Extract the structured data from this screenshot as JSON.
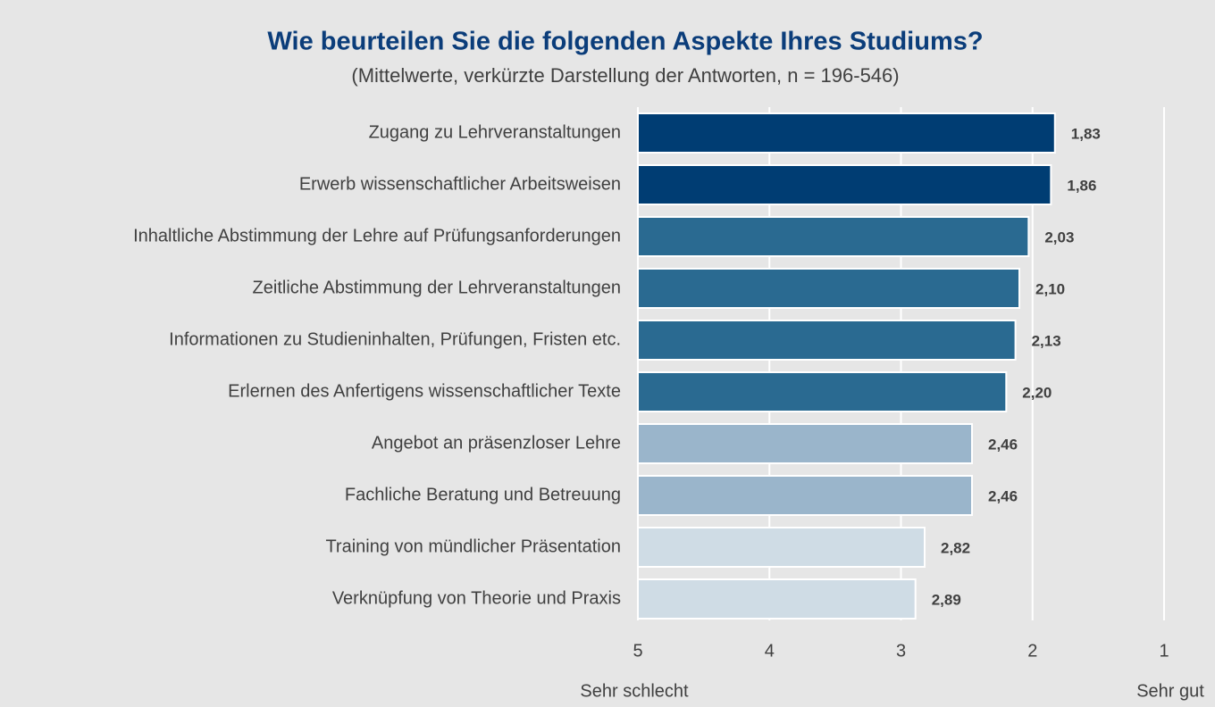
{
  "chart_data": {
    "type": "barh",
    "title": "Wie beurteilen Sie die folgenden Aspekte Ihres Studiums?",
    "subtitle": "(Mittelwerte, verkürzte Darstellung der Antworten, n = 196-546)",
    "categories": [
      "Zugang zu Lehrveranstaltungen",
      "Erwerb wissenschaftlicher Arbeitsweisen",
      "Inhaltliche Abstimmung der Lehre auf Prüfungsanforderungen",
      "Zeitliche Abstimmung der Lehrveranstaltungen",
      "Informationen zu Studieninhalten, Prüfungen, Fristen etc.",
      "Erlernen des Anfertigens wissenschaftlicher Texte",
      "Angebot an präsenzloser Lehre",
      "Fachliche Beratung und Betreuung",
      "Training von mündlicher Präsentation",
      "Verknüpfung von Theorie und Praxis"
    ],
    "values": [
      1.83,
      1.86,
      2.03,
      2.1,
      2.13,
      2.2,
      2.46,
      2.46,
      2.82,
      2.89
    ],
    "value_labels": [
      "1,83",
      "1,86",
      "2,03",
      "2,10",
      "2,13",
      "2,20",
      "2,46",
      "2,46",
      "2,82",
      "2,89"
    ],
    "colors": [
      "#003d73",
      "#003d73",
      "#2a6a91",
      "#2a6a91",
      "#2a6a91",
      "#2a6a91",
      "#9ab5cb",
      "#9ab5cb",
      "#cfdce5",
      "#cfdce5"
    ],
    "xlim": [
      5,
      1
    ],
    "xticks": [
      5,
      4,
      3,
      2,
      1
    ],
    "xlabel_left": "Sehr schlecht",
    "xlabel_right": "Sehr gut",
    "grid": true
  }
}
